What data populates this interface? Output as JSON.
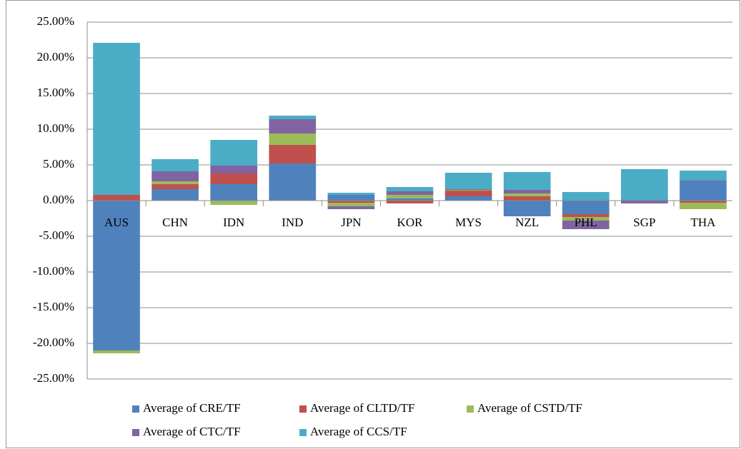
{
  "chart_data": {
    "type": "stacked_bar",
    "categories": [
      "AUS",
      "CHN",
      "IDN",
      "IND",
      "JPN",
      "KOR",
      "MYS",
      "NZL",
      "PHL",
      "SGP",
      "THA"
    ],
    "series": [
      {
        "name": "Average of CRE/TF",
        "color": "#4f81bd",
        "values": [
          -21.0,
          1.6,
          2.3,
          5.2,
          0.8,
          0.3,
          0.6,
          -2.2,
          -1.9,
          0.1,
          2.7
        ]
      },
      {
        "name": "Average of CLTD/TF",
        "color": "#c0504d",
        "values": [
          0.8,
          0.7,
          1.5,
          2.6,
          -0.3,
          -0.4,
          0.8,
          0.6,
          -0.4,
          0.0,
          -0.3
        ]
      },
      {
        "name": "Average of CSTD/TF",
        "color": "#9bbb59",
        "values": [
          -0.4,
          0.4,
          -0.6,
          1.6,
          -0.5,
          0.5,
          0.1,
          0.4,
          -0.5,
          0.0,
          -0.9
        ]
      },
      {
        "name": "Average of CTC/TF",
        "color": "#8064a2",
        "values": [
          0.0,
          1.4,
          1.1,
          2.0,
          -0.4,
          0.5,
          0.1,
          0.5,
          -1.2,
          -0.4,
          0.1
        ]
      },
      {
        "name": "Average of CCS/TF",
        "color": "#4bacc6",
        "values": [
          21.3,
          1.7,
          3.6,
          0.5,
          0.3,
          0.6,
          2.3,
          2.5,
          1.2,
          4.3,
          1.4
        ]
      }
    ],
    "ylim": [
      -25,
      25
    ],
    "yticks": [
      {
        "value": -25,
        "label": "-25.00%"
      },
      {
        "value": -20,
        "label": "-20.00%"
      },
      {
        "value": -15,
        "label": "-15.00%"
      },
      {
        "value": -10,
        "label": "-10.00%"
      },
      {
        "value": -5,
        "label": "-5.00%"
      },
      {
        "value": 0,
        "label": "0.00%"
      },
      {
        "value": 5,
        "label": "5.00%"
      },
      {
        "value": 10,
        "label": "10.00%"
      },
      {
        "value": 15,
        "label": "15.00%"
      },
      {
        "value": 20,
        "label": "20.00%"
      },
      {
        "value": 25,
        "label": "25.00%"
      }
    ],
    "grid": true,
    "legend": "bottom"
  }
}
